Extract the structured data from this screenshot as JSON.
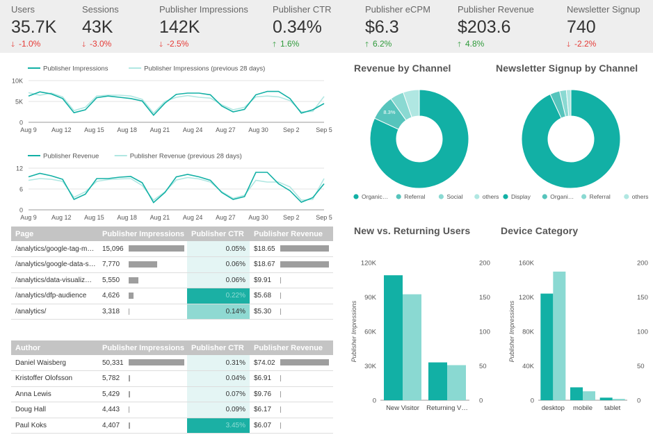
{
  "kpis": [
    {
      "label": "Users",
      "value": "35.7K",
      "delta": "-1.0%",
      "direction": "down"
    },
    {
      "label": "Sessions",
      "value": "43K",
      "delta": "-3.0%",
      "direction": "down"
    },
    {
      "label": "Publisher Impressions",
      "value": "142K",
      "delta": "-2.5%",
      "direction": "down"
    },
    {
      "label": "Publisher CTR",
      "value": "0.34%",
      "delta": "1.6%",
      "direction": "up"
    },
    {
      "label": "Publisher eCPM",
      "value": "$6.3",
      "delta": "6.2%",
      "direction": "up"
    },
    {
      "label": "Publisher Revenue",
      "value": "$203.6",
      "delta": "4.8%",
      "direction": "up"
    },
    {
      "label": "Newsletter Signup",
      "value": "740",
      "delta": "-2.2%",
      "direction": "down"
    }
  ],
  "colors": {
    "primary": "#12b0a5",
    "secondary": "#8ad9d2",
    "tertiary": "#56c4bc",
    "light": "#b0e7e2",
    "bar_gray": "#9e9e9e",
    "down": "#e53935",
    "up": "#2e9a3a",
    "header_bg": "#eeeeee"
  },
  "chart_data": [
    {
      "type": "line",
      "series": [
        {
          "name": "Publisher Impressions",
          "values": [
            6300,
            7300,
            6800,
            5700,
            2300,
            3000,
            5900,
            6300,
            6000,
            5700,
            5100,
            1700,
            4600,
            6700,
            7000,
            7000,
            6600,
            3900,
            2500,
            3100,
            6600,
            7400,
            7400,
            5700,
            2200,
            3000,
            4500
          ]
        },
        {
          "name": "Publisher Impressions (previous 28 days)",
          "values": [
            7100,
            6500,
            7000,
            6100,
            2800,
            3600,
            6300,
            6500,
            6500,
            6300,
            5500,
            2200,
            5000,
            6000,
            6400,
            6000,
            5800,
            4200,
            3000,
            3600,
            6100,
            6300,
            6100,
            5200,
            2500,
            2600,
            6200
          ]
        }
      ],
      "x_ticks": [
        "Aug 9",
        "Aug 12",
        "Aug 15",
        "Aug 18",
        "Aug 21",
        "Aug 24",
        "Aug 27",
        "Aug 30",
        "Sep 2",
        "Sep 5"
      ],
      "y_ticks": [
        "10K",
        "5K",
        "0"
      ],
      "ylim": [
        0,
        10000
      ]
    },
    {
      "type": "line",
      "series": [
        {
          "name": "Publisher Revenue",
          "values": [
            9.5,
            10.5,
            9.8,
            8.8,
            3.0,
            4.5,
            9.0,
            9.0,
            9.4,
            9.6,
            7.8,
            2.1,
            5.0,
            9.5,
            10.2,
            9.5,
            8.5,
            5.0,
            3.0,
            3.8,
            10.8,
            10.8,
            7.5,
            5.5,
            2.2,
            3.5,
            7.5
          ]
        },
        {
          "name": "Publisher Revenue (previous 28 days)",
          "values": [
            8.5,
            9.0,
            8.8,
            8.2,
            3.6,
            5.2,
            8.2,
            8.7,
            8.9,
            9.0,
            7.0,
            2.8,
            5.2,
            8.6,
            9.3,
            8.9,
            8.0,
            5.2,
            3.3,
            4.2,
            8.5,
            8.0,
            8.0,
            6.6,
            2.8,
            3.0,
            9.0
          ]
        }
      ],
      "x_ticks": [
        "Aug 9",
        "Aug 12",
        "Aug 15",
        "Aug 18",
        "Aug 21",
        "Aug 24",
        "Aug 27",
        "Aug 30",
        "Sep 2",
        "Sep 5"
      ],
      "y_ticks": [
        "12",
        "6",
        "0"
      ],
      "ylim": [
        0,
        12
      ]
    },
    {
      "type": "pie",
      "title": "Revenue by Channel",
      "slices": [
        {
          "name": "Organic…",
          "value": 81.9,
          "label": "81.9%"
        },
        {
          "name": "Referral",
          "value": 8.3,
          "label": "8.3%"
        },
        {
          "name": "Social",
          "value": 4.5,
          "label": ""
        },
        {
          "name": "others",
          "value": 5.3,
          "label": ""
        }
      ]
    },
    {
      "type": "pie",
      "title": "Newsletter Signup by Channel",
      "slices": [
        {
          "name": "Display",
          "value": 93.1,
          "label": "93.1%"
        },
        {
          "name": "Organi…",
          "value": 3.2,
          "label": ""
        },
        {
          "name": "Referral",
          "value": 2.2,
          "label": ""
        },
        {
          "name": "others",
          "value": 1.5,
          "label": ""
        }
      ]
    },
    {
      "type": "bar",
      "title": "New vs. Returning Users",
      "categories": [
        "New Visitor",
        "Returning V…"
      ],
      "series": [
        {
          "name": "Publisher Impressions",
          "values": [
            109000,
            33000
          ]
        },
        {
          "name": "secondary",
          "values": [
            154,
            51
          ]
        }
      ],
      "ylabel": "Publisher Impressions",
      "y_ticks_left": [
        "120K",
        "90K",
        "60K",
        "30K",
        "0"
      ],
      "y_ticks_right": [
        "200",
        "150",
        "100",
        "50",
        "0"
      ],
      "ylim": [
        0,
        120000
      ],
      "y2lim": [
        0,
        200
      ]
    },
    {
      "type": "bar",
      "title": "Device Category",
      "categories": [
        "desktop",
        "mobile",
        "tablet"
      ],
      "series": [
        {
          "name": "Publisher Impressions",
          "values": [
            124000,
            15000,
            3000
          ]
        },
        {
          "name": "secondary",
          "values": [
            187,
            13,
            2
          ]
        }
      ],
      "ylabel": "Publisher Impressions",
      "y_ticks_left": [
        "160K",
        "120K",
        "80K",
        "40K",
        "0"
      ],
      "y_ticks_right": [
        "200",
        "150",
        "100",
        "50",
        "0"
      ],
      "ylim": [
        0,
        160000
      ],
      "y2lim": [
        0,
        200
      ]
    }
  ],
  "pages_table": {
    "headers": [
      "Page",
      "Publisher Impressions",
      "Publisher CTR",
      "Publisher Revenue"
    ],
    "sort_indicator": "▼",
    "rows": [
      {
        "name": "/analytics/google-tag-m…",
        "impressions": "15,096",
        "imp_fraction": 1.0,
        "ctr": "0.05%",
        "ctr_level": "low",
        "revenue": "$18.65",
        "rev_fraction": 1.0
      },
      {
        "name": "/analytics/google-data-s…",
        "impressions": "7,770",
        "imp_fraction": 0.515,
        "ctr": "0.06%",
        "ctr_level": "low",
        "revenue": "$18.67",
        "rev_fraction": 1.0
      },
      {
        "name": "/analytics/data-visualiz…",
        "impressions": "5,550",
        "imp_fraction": 0.17,
        "ctr": "0.06%",
        "ctr_level": "low",
        "revenue": "$9.91",
        "rev_fraction": 0.02
      },
      {
        "name": "/analytics/dfp-audience",
        "impressions": "4,626",
        "imp_fraction": 0.09,
        "ctr": "0.22%",
        "ctr_level": "high",
        "revenue": "$5.68",
        "rev_fraction": 0.02
      },
      {
        "name": "/analytics/",
        "impressions": "3,318",
        "imp_fraction": 0.0,
        "ctr": "0.14%",
        "ctr_level": "mid",
        "revenue": "$5.30",
        "rev_fraction": 0.0
      }
    ]
  },
  "authors_table": {
    "headers": [
      "Author",
      "Publisher Impressions",
      "Publisher CTR",
      "Publisher Revenue"
    ],
    "sort_indicator": "▼",
    "rows": [
      {
        "name": "Daniel Waisberg",
        "impressions": "50,331",
        "imp_fraction": 1.0,
        "ctr": "0.31%",
        "ctr_level": "low",
        "revenue": "$74.02",
        "rev_fraction": 1.0
      },
      {
        "name": "Kristoffer Olofsson",
        "impressions": "5,782",
        "imp_fraction": 0.02,
        "ctr": "0.04%",
        "ctr_level": "low",
        "revenue": "$6.91",
        "rev_fraction": 0.02
      },
      {
        "name": "Anna Lewis",
        "impressions": "5,429",
        "imp_fraction": 0.02,
        "ctr": "0.07%",
        "ctr_level": "low",
        "revenue": "$9.76",
        "rev_fraction": 0.02
      },
      {
        "name": "Doug Hall",
        "impressions": "4,443",
        "imp_fraction": 0.0,
        "ctr": "0.09%",
        "ctr_level": "low",
        "revenue": "$6.17",
        "rev_fraction": 0.0
      },
      {
        "name": "Paul Koks",
        "impressions": "4,407",
        "imp_fraction": 0.02,
        "ctr": "3.45%",
        "ctr_level": "high",
        "revenue": "$6.07",
        "rev_fraction": 0.0
      }
    ]
  }
}
